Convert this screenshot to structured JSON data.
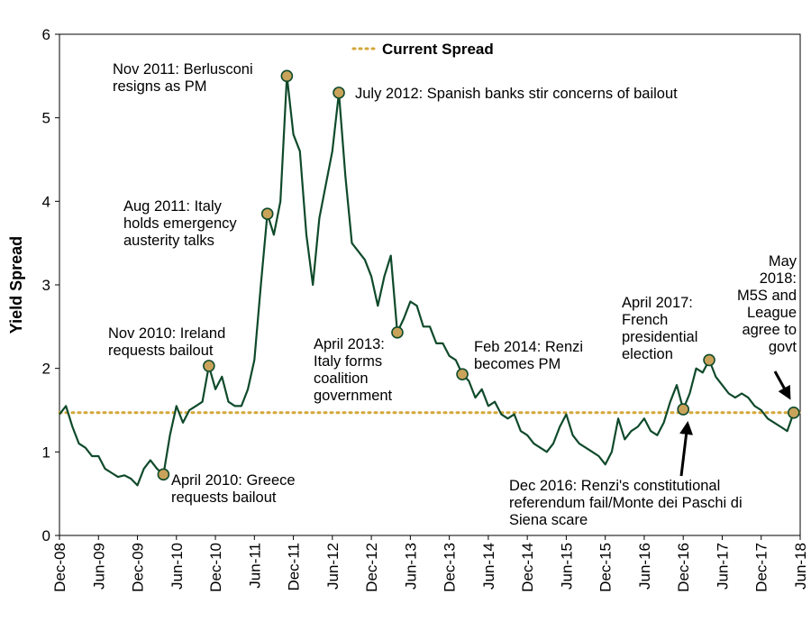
{
  "chart_data": {
    "type": "line",
    "title": "",
    "xlabel": "",
    "ylabel": "Yield Spread",
    "ylim": [
      0,
      6
    ],
    "yticks": [
      "0",
      "1",
      "2",
      "3",
      "4",
      "5",
      "6"
    ],
    "xlim": [
      "2008-12-01",
      "2018-06-01"
    ],
    "xticks": [
      "Dec-08",
      "Jun-09",
      "Dec-09",
      "Jun-10",
      "Dec-10",
      "Jun-11",
      "Dec-11",
      "Jun-12",
      "Dec-12",
      "Jun-13",
      "Dec-13",
      "Jun-14",
      "Dec-14",
      "Jun-15",
      "Dec-15",
      "Jun-16",
      "Dec-16",
      "Jun-17",
      "Dec-17",
      "Jun-18"
    ],
    "grid": false,
    "legend": {
      "placement": "top-center",
      "entries": [
        "Current Spread"
      ]
    },
    "colors": {
      "line": "#0f4a2b",
      "reference": "#d4a73a",
      "marker": "#c9a35a",
      "marker_edge": "#0f4a2b"
    },
    "series": [
      {
        "values": [
          [
            "2008-12-01",
            1.45
          ],
          [
            "2009-01-01",
            1.55
          ],
          [
            "2009-02-01",
            1.3
          ],
          [
            "2009-03-01",
            1.1
          ],
          [
            "2009-04-01",
            1.05
          ],
          [
            "2009-05-01",
            0.95
          ],
          [
            "2009-06-01",
            0.95
          ],
          [
            "2009-07-01",
            0.8
          ],
          [
            "2009-08-01",
            0.75
          ],
          [
            "2009-09-01",
            0.7
          ],
          [
            "2009-10-01",
            0.72
          ],
          [
            "2009-11-01",
            0.68
          ],
          [
            "2009-12-01",
            0.6
          ],
          [
            "2010-01-01",
            0.8
          ],
          [
            "2010-02-01",
            0.9
          ],
          [
            "2010-03-01",
            0.8
          ],
          [
            "2010-04-01",
            0.73
          ],
          [
            "2010-05-01",
            1.2
          ],
          [
            "2010-06-01",
            1.55
          ],
          [
            "2010-07-01",
            1.35
          ],
          [
            "2010-08-01",
            1.5
          ],
          [
            "2010-09-01",
            1.55
          ],
          [
            "2010-10-01",
            1.6
          ],
          [
            "2010-11-01",
            2.03
          ],
          [
            "2010-12-01",
            1.75
          ],
          [
            "2011-01-01",
            1.9
          ],
          [
            "2011-02-01",
            1.6
          ],
          [
            "2011-03-01",
            1.55
          ],
          [
            "2011-04-01",
            1.55
          ],
          [
            "2011-05-01",
            1.75
          ],
          [
            "2011-06-01",
            2.1
          ],
          [
            "2011-07-01",
            3.0
          ],
          [
            "2011-08-01",
            3.85
          ],
          [
            "2011-09-01",
            3.6
          ],
          [
            "2011-10-01",
            4.0
          ],
          [
            "2011-11-01",
            5.5
          ],
          [
            "2011-12-01",
            4.8
          ],
          [
            "2012-01-01",
            4.6
          ],
          [
            "2012-02-01",
            3.6
          ],
          [
            "2012-03-01",
            3.0
          ],
          [
            "2012-04-01",
            3.8
          ],
          [
            "2012-05-01",
            4.2
          ],
          [
            "2012-06-01",
            4.6
          ],
          [
            "2012-07-01",
            5.3
          ],
          [
            "2012-08-01",
            4.3
          ],
          [
            "2012-09-01",
            3.5
          ],
          [
            "2012-10-01",
            3.4
          ],
          [
            "2012-11-01",
            3.3
          ],
          [
            "2012-12-01",
            3.1
          ],
          [
            "2013-01-01",
            2.75
          ],
          [
            "2013-02-01",
            3.1
          ],
          [
            "2013-03-01",
            3.35
          ],
          [
            "2013-04-01",
            2.43
          ],
          [
            "2013-05-01",
            2.6
          ],
          [
            "2013-06-01",
            2.8
          ],
          [
            "2013-07-01",
            2.75
          ],
          [
            "2013-08-01",
            2.5
          ],
          [
            "2013-09-01",
            2.5
          ],
          [
            "2013-10-01",
            2.3
          ],
          [
            "2013-11-01",
            2.3
          ],
          [
            "2013-12-01",
            2.15
          ],
          [
            "2014-01-01",
            2.1
          ],
          [
            "2014-02-01",
            1.93
          ],
          [
            "2014-03-01",
            1.85
          ],
          [
            "2014-04-01",
            1.65
          ],
          [
            "2014-05-01",
            1.75
          ],
          [
            "2014-06-01",
            1.55
          ],
          [
            "2014-07-01",
            1.6
          ],
          [
            "2014-08-01",
            1.45
          ],
          [
            "2014-09-01",
            1.4
          ],
          [
            "2014-10-01",
            1.45
          ],
          [
            "2014-11-01",
            1.25
          ],
          [
            "2014-12-01",
            1.2
          ],
          [
            "2015-01-01",
            1.1
          ],
          [
            "2015-02-01",
            1.05
          ],
          [
            "2015-03-01",
            1.0
          ],
          [
            "2015-04-01",
            1.1
          ],
          [
            "2015-05-01",
            1.3
          ],
          [
            "2015-06-01",
            1.45
          ],
          [
            "2015-07-01",
            1.2
          ],
          [
            "2015-08-01",
            1.1
          ],
          [
            "2015-09-01",
            1.05
          ],
          [
            "2015-10-01",
            1.0
          ],
          [
            "2015-11-01",
            0.95
          ],
          [
            "2015-12-01",
            0.85
          ],
          [
            "2016-01-01",
            1.0
          ],
          [
            "2016-02-01",
            1.4
          ],
          [
            "2016-03-01",
            1.15
          ],
          [
            "2016-04-01",
            1.25
          ],
          [
            "2016-05-01",
            1.3
          ],
          [
            "2016-06-01",
            1.4
          ],
          [
            "2016-07-01",
            1.25
          ],
          [
            "2016-08-01",
            1.2
          ],
          [
            "2016-09-01",
            1.35
          ],
          [
            "2016-10-01",
            1.6
          ],
          [
            "2016-11-01",
            1.8
          ],
          [
            "2016-12-01",
            1.51
          ],
          [
            "2017-01-01",
            1.7
          ],
          [
            "2017-02-01",
            2.0
          ],
          [
            "2017-03-01",
            1.95
          ],
          [
            "2017-04-01",
            2.1
          ],
          [
            "2017-05-01",
            1.9
          ],
          [
            "2017-06-01",
            1.8
          ],
          [
            "2017-07-01",
            1.7
          ],
          [
            "2017-08-01",
            1.65
          ],
          [
            "2017-09-01",
            1.7
          ],
          [
            "2017-10-01",
            1.65
          ],
          [
            "2017-11-01",
            1.55
          ],
          [
            "2017-12-01",
            1.5
          ],
          [
            "2018-01-01",
            1.4
          ],
          [
            "2018-02-01",
            1.35
          ],
          [
            "2018-03-01",
            1.3
          ],
          [
            "2018-04-01",
            1.25
          ],
          [
            "2018-05-01",
            1.47
          ]
        ]
      }
    ],
    "reference_line": {
      "label": "Current Spread",
      "y": 1.47,
      "style": "dotted"
    },
    "annotations": [
      {
        "x": "2010-04-01",
        "y": 0.73,
        "text": "April 2010: Greece requests bailout"
      },
      {
        "x": "2010-11-01",
        "y": 2.03,
        "text": "Nov 2010: Ireland requests bailout"
      },
      {
        "x": "2011-08-01",
        "y": 3.85,
        "text": "Aug 2011: Italy holds emergency austerity talks"
      },
      {
        "x": "2011-11-01",
        "y": 5.5,
        "text": "Nov 2011: Berlusconi resigns as PM"
      },
      {
        "x": "2012-07-01",
        "y": 5.3,
        "text": "July 2012: Spanish banks stir concerns of bailout"
      },
      {
        "x": "2013-04-01",
        "y": 2.43,
        "text": "April 2013: Italy forms coalition government"
      },
      {
        "x": "2014-02-01",
        "y": 1.93,
        "text": "Feb 2014: Renzi becomes PM"
      },
      {
        "x": "2016-12-01",
        "y": 1.51,
        "text": "Dec 2016: Renzi's constitutional referendum fail/Monte dei Paschi di Siena scare"
      },
      {
        "x": "2017-04-01",
        "y": 2.1,
        "text": "April 2017: French presidential election"
      },
      {
        "x": "2018-05-01",
        "y": 1.47,
        "text": "May 2018: M5S and League agree to govt"
      }
    ]
  }
}
